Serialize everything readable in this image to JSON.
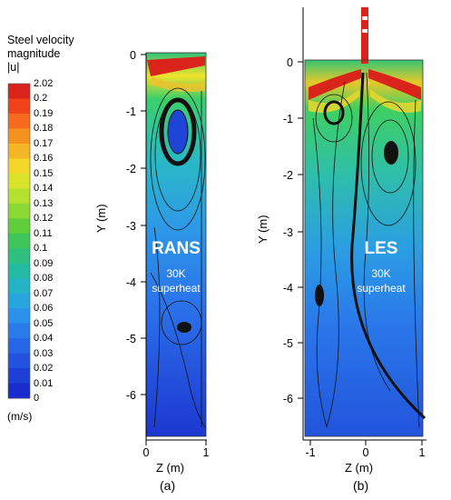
{
  "legend": {
    "title_lines": [
      "Steel velocity",
      "magnitude",
      "|u|"
    ],
    "ticks": [
      "2.02",
      "0.2",
      "0.19",
      "0.18",
      "0.17",
      "0.16",
      "0.15",
      "0.14",
      "0.13",
      "0.12",
      "0.11",
      "0.1",
      "0.09",
      "0.08",
      "0.07",
      "0.06",
      "0.05",
      "0.04",
      "0.03",
      "0.02",
      "0.01",
      "0"
    ],
    "colors": [
      "#d8241b",
      "#f0421b",
      "#f56a1c",
      "#f69220",
      "#f5b625",
      "#f2d729",
      "#d9e32c",
      "#b4e12e",
      "#8cd834",
      "#5fce3a",
      "#3fc65a",
      "#2dc07f",
      "#25bba3",
      "#22b4c4",
      "#27a6de",
      "#2a92ea",
      "#2a7ceb",
      "#2766e6",
      "#2352df",
      "#1e3fd6",
      "#1a2ccd"
    ],
    "units": "(m/s)"
  },
  "panels": [
    {
      "id": "a",
      "model": "RANS",
      "condition_lines": [
        "30K",
        "superheat"
      ],
      "y_label": "Y (m)",
      "x_label": "Z (m)",
      "y_ticks": [
        "0",
        "-1",
        "-2",
        "-3",
        "-4",
        "-5",
        "-6"
      ],
      "x_ticks": [
        "0",
        "1"
      ],
      "caption": "(a)"
    },
    {
      "id": "b",
      "model": "LES",
      "condition_lines": [
        "30K",
        "superheat"
      ],
      "y_label": "Y (m)",
      "x_label": "Z (m)",
      "y_ticks": [
        "0",
        "-1",
        "-2",
        "-3",
        "-4",
        "-5",
        "-6"
      ],
      "x_ticks": [
        "-1",
        "0",
        "1"
      ],
      "caption": "(b)"
    }
  ]
}
